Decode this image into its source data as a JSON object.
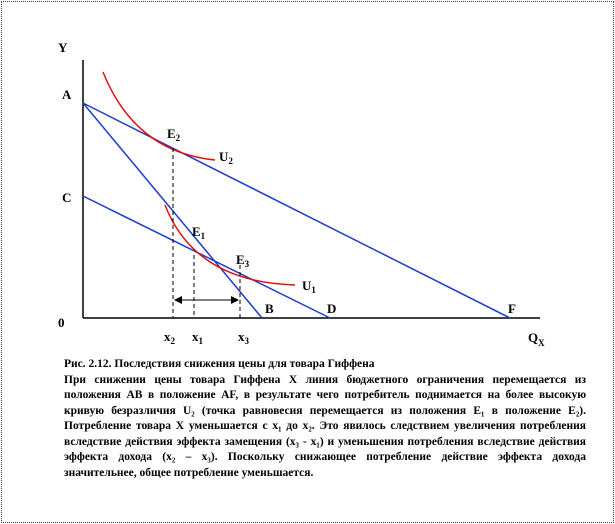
{
  "figure": {
    "axis_y": "Y",
    "axis_x": {
      "text": "Q",
      "sub": "X"
    },
    "origin": "0",
    "points": {
      "A": "A",
      "C": "C",
      "B": "B",
      "D": "D",
      "F": "F"
    },
    "equilibria": [
      {
        "text": "E",
        "sub": "2"
      },
      {
        "text": "E",
        "sub": "1"
      },
      {
        "text": "E",
        "sub": "3"
      }
    ],
    "curves": [
      {
        "text": "U",
        "sub": "2"
      },
      {
        "text": "U",
        "sub": "1"
      }
    ],
    "quantities": [
      {
        "text": "x",
        "sub": "2"
      },
      {
        "text": "x",
        "sub": "1"
      },
      {
        "text": "x",
        "sub": "3"
      }
    ]
  },
  "caption": {
    "title": "Рис.  2.12. Последствия снижения цены для товара Гиффена",
    "text": "При снижении цены товара Гиффена X линия бюджетного ограничения перемещается из положения  AB в положение AF, в результате чего потребитель поднимается на более высокую кривую безразличия U₂ (точка равновесия перемещается из положения E₁ в положение E₂). Потребление товара X уменьшается с x₁ до x₂. Это явилось следствием  увеличения потребления вследствие действия эффекта замещения (x₃ - x₁) и  уменьшения потребления вследствие действия эффекта дохода (x₂ – x₃). Поскольку снижающее потребление действие эффекта дохода значительнее, общее потребление уменьшается."
  }
}
